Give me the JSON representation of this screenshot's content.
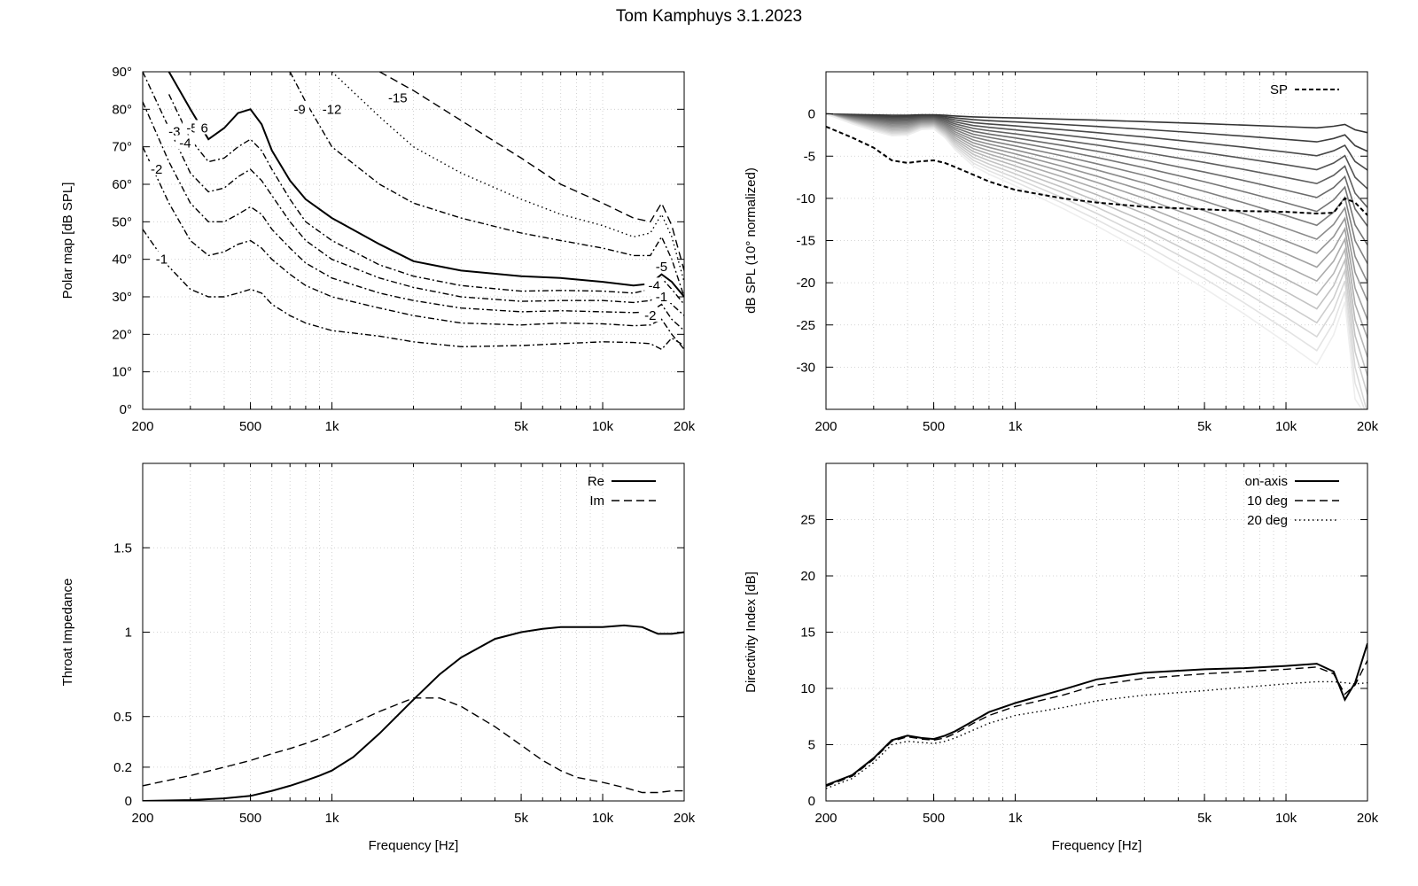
{
  "figure": {
    "title": "Tom Kamphuys 3.1.2023"
  },
  "chart_data": [
    {
      "id": "polar",
      "type": "line",
      "title": "",
      "xlabel": "",
      "ylabel": "Polar map [dB SPL]",
      "xscale": "log",
      "xlim": [
        200,
        20000
      ],
      "ylim": [
        0,
        90
      ],
      "x_ticks": [
        200,
        500,
        1000,
        5000,
        10000,
        20000
      ],
      "x_tick_labels": [
        "200",
        "500",
        "1k",
        "5k",
        "10k",
        "20k"
      ],
      "y_ticks": [
        0,
        10,
        20,
        30,
        40,
        50,
        60,
        70,
        80,
        90
      ],
      "y_tick_labels": [
        "0°",
        "10°",
        "20°",
        "30°",
        "40°",
        "50°",
        "60°",
        "70°",
        "80°",
        "90°"
      ],
      "grid": true,
      "x": [
        200,
        250,
        300,
        350,
        400,
        450,
        500,
        550,
        600,
        700,
        800,
        1000,
        1500,
        2000,
        3000,
        5000,
        7000,
        10000,
        13000,
        15000,
        16500,
        18000,
        20000
      ],
      "series": [
        {
          "name": "-1",
          "style": "dashdot",
          "values": [
            48,
            38,
            32,
            30,
            30,
            31,
            32,
            31,
            28,
            25,
            23,
            21,
            19.5,
            18,
            16.7,
            17,
            17.5,
            18,
            17.8,
            17.5,
            16,
            19,
            17
          ]
        },
        {
          "name": "-2",
          "style": "dashdot",
          "values": [
            70,
            55,
            45,
            41,
            42,
            44,
            45,
            43,
            40,
            36,
            33,
            30,
            27,
            25,
            23,
            22.5,
            23,
            22.8,
            22.3,
            22.5,
            24,
            20,
            16
          ]
        },
        {
          "name": "-3",
          "style": "dashdot",
          "values": [
            82,
            66,
            55,
            50,
            50,
            52,
            54,
            52,
            48,
            43,
            39,
            35,
            31,
            29,
            27,
            26,
            26.3,
            26,
            25.8,
            26,
            28,
            24,
            21
          ]
        },
        {
          "name": "-4",
          "style": "dashdot",
          "values": [
            90,
            75,
            63,
            58,
            59,
            62,
            64,
            61,
            57,
            50,
            45,
            40,
            35,
            32.5,
            30,
            28.8,
            29,
            29,
            28.5,
            29,
            31,
            28,
            25
          ]
        },
        {
          "name": "-5",
          "style": "dashdot",
          "values": [
            null,
            84,
            72,
            66,
            67,
            70,
            72,
            69,
            64,
            56,
            50,
            45,
            38.5,
            35.5,
            33,
            31.5,
            31.7,
            31.5,
            31,
            32,
            35,
            32,
            28
          ]
        },
        {
          "name": "-6",
          "style": "solid",
          "values": [
            null,
            90,
            80,
            72,
            75,
            79,
            80,
            76,
            69,
            61,
            56,
            51,
            44,
            39.5,
            37,
            35.5,
            35,
            34,
            33,
            33.5,
            36,
            34,
            30
          ]
        },
        {
          "name": "-9",
          "style": "dashdot",
          "values": [
            null,
            null,
            null,
            null,
            null,
            null,
            null,
            null,
            null,
            90,
            82,
            70,
            60,
            55,
            51,
            47,
            45,
            43,
            41,
            41,
            46,
            40,
            30
          ]
        },
        {
          "name": "-12",
          "style": "dotted",
          "values": [
            null,
            null,
            null,
            null,
            null,
            null,
            null,
            null,
            null,
            null,
            null,
            90,
            78,
            70,
            63,
            56,
            52,
            49,
            46,
            47,
            52,
            46,
            34
          ]
        },
        {
          "name": "-15",
          "style": "dashed",
          "values": [
            null,
            null,
            null,
            null,
            null,
            null,
            null,
            null,
            null,
            null,
            null,
            null,
            90,
            85,
            77,
            67,
            60,
            55,
            51,
            50,
            55,
            49,
            37
          ]
        }
      ],
      "contour_labels": [
        {
          "text": "-1",
          "x": 235,
          "y": 40
        },
        {
          "text": "-2",
          "x": 225,
          "y": 64
        },
        {
          "text": "-3",
          "x": 262,
          "y": 74
        },
        {
          "text": "-4",
          "x": 287,
          "y": 71
        },
        {
          "text": "-5",
          "x": 305,
          "y": 75
        },
        {
          "text": "6",
          "x": 338,
          "y": 75
        },
        {
          "text": "-9",
          "x": 760,
          "y": 80
        },
        {
          "text": "-12",
          "x": 1000,
          "y": 80
        },
        {
          "text": "-15",
          "x": 1750,
          "y": 83
        },
        {
          "text": "-5",
          "x": 16500,
          "y": 38
        },
        {
          "text": "-4",
          "x": 15500,
          "y": 33
        },
        {
          "text": "-1",
          "x": 16500,
          "y": 30
        },
        {
          "text": "-2",
          "x": 15000,
          "y": 25
        }
      ]
    },
    {
      "id": "spl",
      "type": "line",
      "title": "",
      "xlabel": "",
      "ylabel": "dB SPL (10° normalized)",
      "xscale": "log",
      "xlim": [
        200,
        20000
      ],
      "ylim": [
        -35,
        5
      ],
      "x_ticks": [
        200,
        500,
        1000,
        5000,
        10000,
        20000
      ],
      "x_tick_labels": [
        "200",
        "500",
        "1k",
        "5k",
        "10k",
        "20k"
      ],
      "y_ticks": [
        -30,
        -25,
        -20,
        -15,
        -10,
        -5,
        0
      ],
      "y_tick_labels": [
        "-30",
        "-25",
        "-20",
        "-15",
        "-10",
        "-5",
        "0"
      ],
      "grid": true,
      "legend": {
        "position": "top-right",
        "entries": [
          "SP"
        ]
      },
      "sp_series": {
        "name": "SP",
        "x": [
          200,
          250,
          300,
          350,
          400,
          450,
          500,
          550,
          600,
          700,
          800,
          1000,
          1500,
          2000,
          3000,
          5000,
          7000,
          10000,
          13000,
          15000,
          16500,
          18000,
          20000
        ],
        "values": [
          -1.5,
          -2.8,
          -4,
          -5.5,
          -5.8,
          -5.6,
          -5.5,
          -5.8,
          -6.3,
          -7.2,
          -8,
          -9,
          -10,
          -10.5,
          -11,
          -11.3,
          -11.5,
          -11.6,
          -11.8,
          -11.7,
          -10,
          -10.5,
          -12
        ]
      },
      "angle_curves": {
        "count": 18,
        "note_values": "family of off-axis responses, 5° steps, darkest = closest to axis"
      }
    },
    {
      "id": "impedance",
      "type": "line",
      "title": "",
      "xlabel": "Frequency [Hz]",
      "ylabel": "Throat Impedance",
      "xscale": "log",
      "xlim": [
        200,
        20000
      ],
      "ylim": [
        0,
        2
      ],
      "x_ticks": [
        200,
        500,
        1000,
        5000,
        10000,
        20000
      ],
      "x_tick_labels": [
        "200",
        "500",
        "1k",
        "5k",
        "10k",
        "20k"
      ],
      "y_ticks": [
        0,
        0.2,
        0.5,
        1,
        1.5
      ],
      "y_tick_labels": [
        "0",
        "0.2",
        "0.5",
        "1",
        "1.5"
      ],
      "grid": true,
      "legend": {
        "position": "top-right",
        "entries": [
          "Re",
          "Im"
        ]
      },
      "x": [
        200,
        300,
        400,
        500,
        600,
        700,
        800,
        900,
        1000,
        1200,
        1500,
        2000,
        2500,
        3000,
        4000,
        5000,
        6000,
        7000,
        8000,
        10000,
        12000,
        14000,
        16000,
        18000,
        20000
      ],
      "series": [
        {
          "name": "Re",
          "style": "solid",
          "values": [
            0,
            0.005,
            0.015,
            0.03,
            0.06,
            0.09,
            0.12,
            0.15,
            0.18,
            0.26,
            0.4,
            0.6,
            0.75,
            0.85,
            0.96,
            1.0,
            1.02,
            1.03,
            1.03,
            1.03,
            1.04,
            1.03,
            0.99,
            0.99,
            1.0
          ]
        },
        {
          "name": "Im",
          "style": "dashed",
          "values": [
            0.09,
            0.15,
            0.2,
            0.24,
            0.28,
            0.31,
            0.34,
            0.37,
            0.4,
            0.46,
            0.53,
            0.61,
            0.61,
            0.56,
            0.44,
            0.33,
            0.24,
            0.18,
            0.14,
            0.11,
            0.08,
            0.05,
            0.05,
            0.06,
            0.06
          ]
        }
      ]
    },
    {
      "id": "directivity",
      "type": "line",
      "title": "",
      "xlabel": "Frequency [Hz]",
      "ylabel": "Directivity Index [dB]",
      "xscale": "log",
      "xlim": [
        200,
        20000
      ],
      "ylim": [
        0,
        30
      ],
      "x_ticks": [
        200,
        500,
        1000,
        5000,
        10000,
        20000
      ],
      "x_tick_labels": [
        "200",
        "500",
        "1k",
        "5k",
        "10k",
        "20k"
      ],
      "y_ticks": [
        0,
        5,
        10,
        15,
        20,
        25
      ],
      "y_tick_labels": [
        "0",
        "5",
        "10",
        "15",
        "20",
        "25"
      ],
      "grid": true,
      "legend": {
        "position": "top-right",
        "entries": [
          "on-axis",
          "10 deg",
          "20 deg"
        ]
      },
      "x": [
        200,
        250,
        300,
        350,
        400,
        450,
        500,
        550,
        600,
        700,
        800,
        1000,
        1500,
        2000,
        3000,
        5000,
        7000,
        10000,
        13000,
        15000,
        16500,
        18000,
        20000
      ],
      "series": [
        {
          "name": "on-axis",
          "style": "solid",
          "values": [
            1.4,
            2.3,
            3.8,
            5.4,
            5.8,
            5.6,
            5.5,
            5.8,
            6.2,
            7.1,
            7.9,
            8.7,
            9.9,
            10.8,
            11.4,
            11.7,
            11.8,
            12.0,
            12.2,
            11.5,
            9.0,
            10.5,
            14.0
          ]
        },
        {
          "name": "10 deg",
          "style": "dashed",
          "values": [
            1.3,
            2.2,
            3.7,
            5.3,
            5.7,
            5.5,
            5.4,
            5.6,
            6.0,
            6.9,
            7.6,
            8.4,
            9.4,
            10.3,
            10.9,
            11.3,
            11.5,
            11.7,
            11.9,
            11.3,
            9.5,
            10.3,
            12.5
          ]
        },
        {
          "name": "20 deg",
          "style": "dotted",
          "values": [
            1.1,
            2.0,
            3.4,
            5.0,
            5.3,
            5.2,
            5.1,
            5.3,
            5.6,
            6.3,
            6.9,
            7.6,
            8.3,
            8.9,
            9.4,
            9.8,
            10.1,
            10.4,
            10.6,
            10.6,
            10.5,
            10.4,
            10.5
          ]
        }
      ]
    }
  ]
}
